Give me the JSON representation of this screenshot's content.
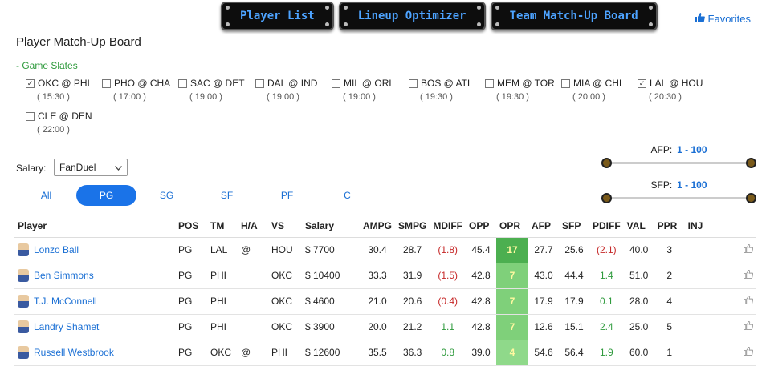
{
  "nav": {
    "buttons": [
      "Player List",
      "Lineup Optimizer",
      "Team Match-Up Board"
    ],
    "favorites": "Favorites"
  },
  "page_title": "Player Match-Up Board",
  "slates_toggle": "- Game Slates",
  "slates": [
    {
      "game": "OKC @ PHI",
      "time": "( 15:30 )",
      "checked": true
    },
    {
      "game": "PHO @ CHA",
      "time": "( 17:00 )",
      "checked": false
    },
    {
      "game": "SAC @ DET",
      "time": "( 19:00 )",
      "checked": false
    },
    {
      "game": "DAL @ IND",
      "time": "( 19:00 )",
      "checked": false
    },
    {
      "game": "MIL @ ORL",
      "time": "( 19:00 )",
      "checked": false
    },
    {
      "game": "BOS @ ATL",
      "time": "( 19:30 )",
      "checked": false
    },
    {
      "game": "MEM @ TOR",
      "time": "( 19:30 )",
      "checked": false
    },
    {
      "game": "MIA @ CHI",
      "time": "( 20:00 )",
      "checked": false
    },
    {
      "game": "LAL @ HOU",
      "time": "( 20:30 )",
      "checked": true
    },
    {
      "game": "CLE @ DEN",
      "time": "( 22:00 )",
      "checked": false
    }
  ],
  "salary": {
    "label": "Salary:",
    "selected": "FanDuel"
  },
  "position_tabs": [
    {
      "label": "All",
      "active": false
    },
    {
      "label": "PG",
      "active": true
    },
    {
      "label": "SG",
      "active": false
    },
    {
      "label": "SF",
      "active": false
    },
    {
      "label": "PF",
      "active": false
    },
    {
      "label": "C",
      "active": false
    }
  ],
  "afp": {
    "label": "AFP:",
    "range": "1 - 100"
  },
  "sfp": {
    "label": "SFP:",
    "range": "1 - 100"
  },
  "table": {
    "headers": [
      "Player",
      "POS",
      "TM",
      "H/A",
      "VS",
      "Salary",
      "AMPG",
      "SMPG",
      "MDIFF",
      "OPP",
      "OPR",
      "AFP",
      "SFP",
      "PDIFF",
      "VAL",
      "PPR",
      "INJ"
    ],
    "rows": [
      {
        "player": "Lonzo Ball",
        "pos": "PG",
        "tm": "LAL",
        "ha": "@",
        "vs": "HOU",
        "salary": "$ 7700",
        "ampg": "30.4",
        "smpg": "28.7",
        "mdiff": "(1.8)",
        "mdiff_sign": "neg",
        "opp": "45.4",
        "opr": "17",
        "opr_color": "#4caf50",
        "afp": "27.7",
        "sfp": "25.6",
        "pdiff": "(2.1)",
        "pdiff_sign": "neg",
        "val": "40.0",
        "ppr": "3",
        "inj": ""
      },
      {
        "player": "Ben Simmons",
        "pos": "PG",
        "tm": "PHI",
        "ha": "",
        "vs": "OKC",
        "salary": "$ 10400",
        "ampg": "33.3",
        "smpg": "31.9",
        "mdiff": "(1.5)",
        "mdiff_sign": "neg",
        "opp": "42.8",
        "opr": "7",
        "opr_color": "#7fd07a",
        "afp": "43.0",
        "sfp": "44.4",
        "pdiff": "1.4",
        "pdiff_sign": "pos",
        "val": "51.0",
        "ppr": "2",
        "inj": ""
      },
      {
        "player": "T.J. McConnell",
        "pos": "PG",
        "tm": "PHI",
        "ha": "",
        "vs": "OKC",
        "salary": "$ 4600",
        "ampg": "21.0",
        "smpg": "20.6",
        "mdiff": "(0.4)",
        "mdiff_sign": "neg",
        "opp": "42.8",
        "opr": "7",
        "opr_color": "#7fd07a",
        "afp": "17.9",
        "sfp": "17.9",
        "pdiff": "0.1",
        "pdiff_sign": "pos",
        "val": "28.0",
        "ppr": "4",
        "inj": ""
      },
      {
        "player": "Landry Shamet",
        "pos": "PG",
        "tm": "PHI",
        "ha": "",
        "vs": "OKC",
        "salary": "$ 3900",
        "ampg": "20.0",
        "smpg": "21.2",
        "mdiff": "1.1",
        "mdiff_sign": "pos",
        "opp": "42.8",
        "opr": "7",
        "opr_color": "#7fd07a",
        "afp": "12.6",
        "sfp": "15.1",
        "pdiff": "2.4",
        "pdiff_sign": "pos",
        "val": "25.0",
        "ppr": "5",
        "inj": ""
      },
      {
        "player": "Russell Westbrook",
        "pos": "PG",
        "tm": "OKC",
        "ha": "@",
        "vs": "PHI",
        "salary": "$ 12600",
        "ampg": "35.5",
        "smpg": "36.3",
        "mdiff": "0.8",
        "mdiff_sign": "pos",
        "opp": "39.0",
        "opr": "4",
        "opr_color": "#8fd98a",
        "afp": "54.6",
        "sfp": "56.4",
        "pdiff": "1.9",
        "pdiff_sign": "pos",
        "val": "60.0",
        "ppr": "1",
        "inj": ""
      }
    ]
  }
}
